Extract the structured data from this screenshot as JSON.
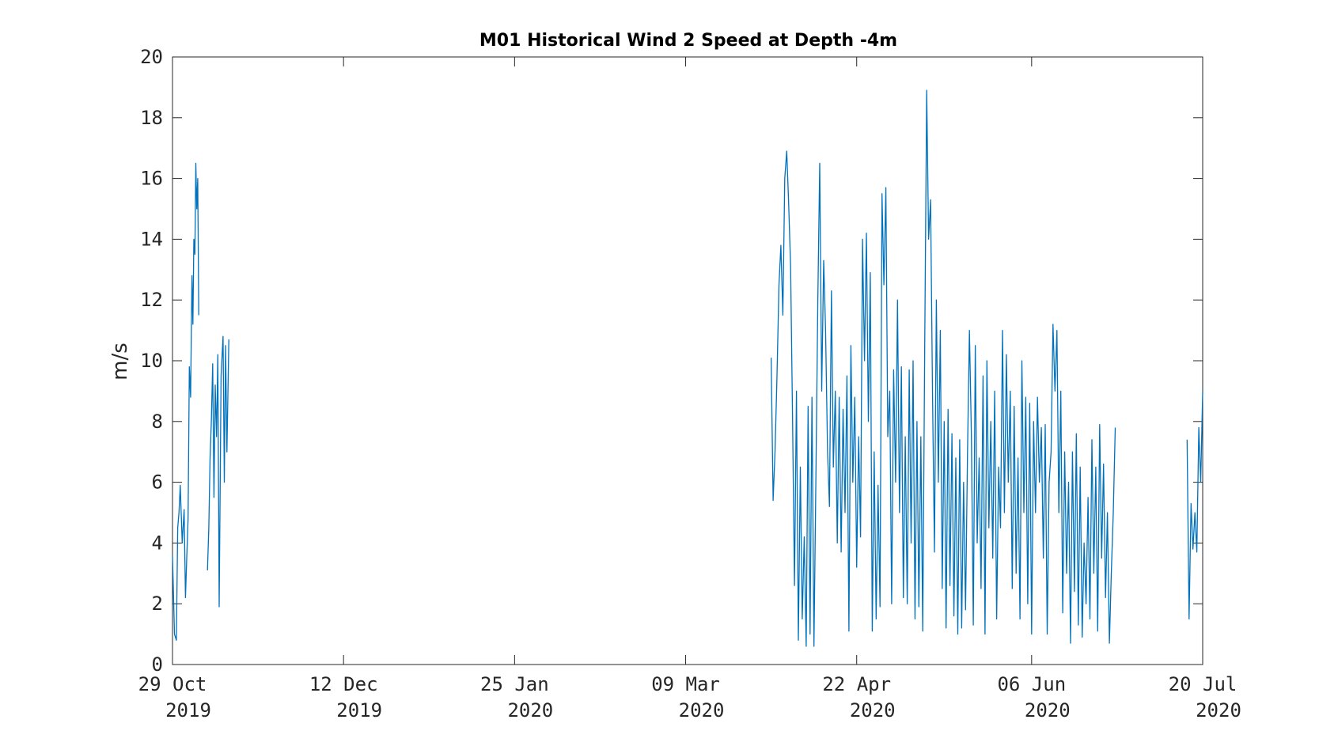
{
  "chart_data": {
    "type": "line",
    "title": "M01 Historical Wind 2 Speed at Depth -4m",
    "xlabel": "",
    "ylabel": "m/s",
    "x_axis_type": "date",
    "xlim": [
      "2019-10-29",
      "2020-07-20"
    ],
    "ylim": [
      0,
      20
    ],
    "yticks": [
      0,
      2,
      4,
      6,
      8,
      10,
      12,
      14,
      16,
      18,
      20
    ],
    "xticks": [
      {
        "date": "2019-10-29",
        "line1": "29 Oct",
        "line2": "2019"
      },
      {
        "date": "2019-12-12",
        "line1": "12 Dec",
        "line2": "2019"
      },
      {
        "date": "2020-01-25",
        "line1": "25 Jan",
        "line2": "2020"
      },
      {
        "date": "2020-03-09",
        "line1": "09 Mar",
        "line2": "2020"
      },
      {
        "date": "2020-04-22",
        "line1": "22 Apr",
        "line2": "2020"
      },
      {
        "date": "2020-06-06",
        "line1": "06 Jun",
        "line2": "2020"
      },
      {
        "date": "2020-07-20",
        "line1": "20 Jul",
        "line2": "2020"
      }
    ],
    "grid": false,
    "legend": "none",
    "line_color": "#0072BD",
    "series": [
      {
        "segments": [
          [
            [
              "2019-10-29",
              3.6
            ],
            [
              "2019-10-29",
              1.0
            ],
            [
              "2019-10-30",
              0.8
            ],
            [
              "2019-10-30",
              4.5
            ],
            [
              "2019-10-30",
              5.0
            ],
            [
              "2019-10-31",
              5.9
            ],
            [
              "2019-10-31",
              4.0
            ],
            [
              "2019-11-01",
              5.1
            ],
            [
              "2019-11-01",
              2.2
            ],
            [
              "2019-11-01",
              3.5
            ],
            [
              "2019-11-02",
              4.8
            ],
            [
              "2019-11-02",
              9.8
            ],
            [
              "2019-11-02",
              8.8
            ],
            [
              "2019-11-03",
              12.8
            ],
            [
              "2019-11-03",
              11.2
            ],
            [
              "2019-11-03",
              14.0
            ],
            [
              "2019-11-03",
              13.5
            ],
            [
              "2019-11-04",
              16.5
            ],
            [
              "2019-11-04",
              15.0
            ],
            [
              "2019-11-04",
              16.0
            ],
            [
              "2019-11-04",
              11.5
            ]
          ],
          [
            [
              "2019-11-07",
              3.1
            ],
            [
              "2019-11-07",
              4.5
            ],
            [
              "2019-11-07",
              6.8
            ],
            [
              "2019-11-08",
              8.0
            ],
            [
              "2019-11-08",
              9.9
            ],
            [
              "2019-11-08",
              5.5
            ],
            [
              "2019-11-09",
              9.2
            ],
            [
              "2019-11-09",
              7.5
            ],
            [
              "2019-11-09",
              10.2
            ],
            [
              "2019-11-10",
              1.9
            ],
            [
              "2019-11-10",
              9.5
            ],
            [
              "2019-11-11",
              10.8
            ],
            [
              "2019-11-11",
              6.0
            ],
            [
              "2019-11-11",
              10.5
            ],
            [
              "2019-11-12",
              7.0
            ],
            [
              "2019-11-12",
              10.7
            ]
          ],
          [
            [
              "2020-03-31",
              10.1
            ],
            [
              "2020-03-31",
              5.4
            ],
            [
              "2020-04-01",
              7.0
            ],
            [
              "2020-04-01",
              9.5
            ],
            [
              "2020-04-02",
              12.5
            ],
            [
              "2020-04-02",
              13.8
            ],
            [
              "2020-04-03",
              11.5
            ],
            [
              "2020-04-03",
              16.0
            ],
            [
              "2020-04-04",
              16.9
            ],
            [
              "2020-04-04",
              15.2
            ],
            [
              "2020-04-05",
              13.1
            ],
            [
              "2020-04-05",
              8.0
            ],
            [
              "2020-04-06",
              2.6
            ],
            [
              "2020-04-06",
              9.0
            ],
            [
              "2020-04-07",
              0.8
            ],
            [
              "2020-04-07",
              6.5
            ],
            [
              "2020-04-08",
              1.5
            ],
            [
              "2020-04-08",
              4.2
            ],
            [
              "2020-04-09",
              0.6
            ],
            [
              "2020-04-09",
              8.5
            ],
            [
              "2020-04-10",
              1.0
            ],
            [
              "2020-04-10",
              8.8
            ],
            [
              "2020-04-11",
              0.6
            ],
            [
              "2020-04-11",
              6.0
            ],
            [
              "2020-04-12",
              12.0
            ],
            [
              "2020-04-12",
              16.5
            ],
            [
              "2020-04-13",
              9.0
            ],
            [
              "2020-04-13",
              13.3
            ],
            [
              "2020-04-14",
              11.0
            ],
            [
              "2020-04-14",
              7.0
            ],
            [
              "2020-04-15",
              5.2
            ],
            [
              "2020-04-15",
              12.3
            ],
            [
              "2020-04-16",
              6.5
            ],
            [
              "2020-04-16",
              9.0
            ],
            [
              "2020-04-17",
              4.0
            ],
            [
              "2020-04-17",
              8.8
            ],
            [
              "2020-04-18",
              3.7
            ],
            [
              "2020-04-18",
              8.4
            ],
            [
              "2020-04-19",
              5.0
            ],
            [
              "2020-04-19",
              9.5
            ],
            [
              "2020-04-20",
              1.1
            ],
            [
              "2020-04-20",
              10.5
            ],
            [
              "2020-04-21",
              6.0
            ],
            [
              "2020-04-21",
              8.8
            ],
            [
              "2020-04-22",
              3.2
            ],
            [
              "2020-04-22",
              7.5
            ],
            [
              "2020-04-23",
              4.2
            ],
            [
              "2020-04-23",
              14.0
            ],
            [
              "2020-04-24",
              10.0
            ],
            [
              "2020-04-24",
              14.2
            ],
            [
              "2020-04-25",
              8.0
            ],
            [
              "2020-04-25",
              12.9
            ],
            [
              "2020-04-26",
              1.1
            ],
            [
              "2020-04-26",
              7.0
            ],
            [
              "2020-04-27",
              1.5
            ],
            [
              "2020-04-27",
              5.9
            ],
            [
              "2020-04-28",
              1.9
            ],
            [
              "2020-04-28",
              15.5
            ],
            [
              "2020-04-29",
              12.5
            ],
            [
              "2020-04-29",
              15.7
            ],
            [
              "2020-04-30",
              7.5
            ],
            [
              "2020-04-30",
              9.0
            ],
            [
              "2020-05-01",
              2.0
            ],
            [
              "2020-05-01",
              9.7
            ],
            [
              "2020-05-02",
              6.0
            ],
            [
              "2020-05-02",
              12.0
            ],
            [
              "2020-05-03",
              5.0
            ],
            [
              "2020-05-03",
              9.8
            ],
            [
              "2020-05-04",
              2.2
            ],
            [
              "2020-05-04",
              7.5
            ],
            [
              "2020-05-05",
              2.0
            ],
            [
              "2020-05-05",
              9.7
            ],
            [
              "2020-05-06",
              4.0
            ],
            [
              "2020-05-06",
              10.0
            ],
            [
              "2020-05-07",
              1.5
            ],
            [
              "2020-05-07",
              8.0
            ],
            [
              "2020-05-08",
              1.9
            ],
            [
              "2020-05-08",
              7.5
            ],
            [
              "2020-05-09",
              1.1
            ],
            [
              "2020-05-09",
              10.5
            ],
            [
              "2020-05-10",
              18.9
            ],
            [
              "2020-05-10",
              14.0
            ],
            [
              "2020-05-11",
              15.3
            ],
            [
              "2020-05-11",
              9.0
            ],
            [
              "2020-05-12",
              3.7
            ],
            [
              "2020-05-12",
              12.0
            ],
            [
              "2020-05-13",
              6.0
            ],
            [
              "2020-05-13",
              11.0
            ],
            [
              "2020-05-14",
              2.5
            ],
            [
              "2020-05-14",
              8.0
            ],
            [
              "2020-05-15",
              1.2
            ],
            [
              "2020-05-15",
              8.4
            ],
            [
              "2020-05-16",
              2.6
            ],
            [
              "2020-05-16",
              7.6
            ],
            [
              "2020-05-17",
              1.6
            ],
            [
              "2020-05-17",
              6.8
            ],
            [
              "2020-05-18",
              1.0
            ],
            [
              "2020-05-18",
              7.4
            ],
            [
              "2020-05-19",
              1.2
            ],
            [
              "2020-05-19",
              6.0
            ],
            [
              "2020-05-20",
              1.8
            ],
            [
              "2020-05-20",
              7.0
            ],
            [
              "2020-05-21",
              11.0
            ],
            [
              "2020-05-21",
              7.5
            ],
            [
              "2020-05-22",
              1.3
            ],
            [
              "2020-05-22",
              10.5
            ],
            [
              "2020-05-23",
              4.0
            ],
            [
              "2020-05-23",
              6.8
            ],
            [
              "2020-05-24",
              2.5
            ],
            [
              "2020-05-24",
              9.5
            ],
            [
              "2020-05-25",
              1.0
            ],
            [
              "2020-05-25",
              10.0
            ],
            [
              "2020-05-26",
              4.5
            ],
            [
              "2020-05-26",
              8.0
            ],
            [
              "2020-05-27",
              3.5
            ],
            [
              "2020-05-27",
              9.0
            ],
            [
              "2020-05-28",
              1.5
            ],
            [
              "2020-05-28",
              6.5
            ],
            [
              "2020-05-29",
              4.5
            ],
            [
              "2020-05-29",
              11.0
            ],
            [
              "2020-05-30",
              5.0
            ],
            [
              "2020-05-30",
              10.2
            ],
            [
              "2020-05-31",
              6.0
            ],
            [
              "2020-05-31",
              9.0
            ],
            [
              "2020-06-01",
              2.5
            ],
            [
              "2020-06-01",
              8.5
            ],
            [
              "2020-06-02",
              3.0
            ],
            [
              "2020-06-02",
              6.8
            ],
            [
              "2020-06-03",
              1.5
            ],
            [
              "2020-06-03",
              10.0
            ],
            [
              "2020-06-04",
              5.0
            ],
            [
              "2020-06-04",
              8.8
            ],
            [
              "2020-06-05",
              2.0
            ],
            [
              "2020-06-05",
              8.6
            ],
            [
              "2020-06-06",
              1.0
            ],
            [
              "2020-06-06",
              8.0
            ],
            [
              "2020-06-07",
              5.0
            ],
            [
              "2020-06-07",
              8.8
            ],
            [
              "2020-06-08",
              6.0
            ],
            [
              "2020-06-08",
              7.8
            ],
            [
              "2020-06-09",
              3.5
            ],
            [
              "2020-06-09",
              7.9
            ],
            [
              "2020-06-10",
              1.0
            ],
            [
              "2020-06-10",
              6.0
            ],
            [
              "2020-06-11",
              7.0
            ],
            [
              "2020-06-11",
              11.2
            ],
            [
              "2020-06-12",
              9.0
            ],
            [
              "2020-06-12",
              11.0
            ],
            [
              "2020-06-13",
              5.0
            ],
            [
              "2020-06-13",
              9.0
            ],
            [
              "2020-06-14",
              1.7
            ],
            [
              "2020-06-14",
              7.0
            ],
            [
              "2020-06-15",
              3.0
            ],
            [
              "2020-06-15",
              6.0
            ],
            [
              "2020-06-16",
              0.7
            ],
            [
              "2020-06-16",
              7.0
            ],
            [
              "2020-06-17",
              2.4
            ],
            [
              "2020-06-17",
              7.6
            ],
            [
              "2020-06-18",
              1.3
            ],
            [
              "2020-06-18",
              6.5
            ],
            [
              "2020-06-19",
              0.9
            ],
            [
              "2020-06-19",
              4.0
            ],
            [
              "2020-06-20",
              2.0
            ],
            [
              "2020-06-20",
              5.5
            ],
            [
              "2020-06-21",
              1.5
            ],
            [
              "2020-06-21",
              7.4
            ],
            [
              "2020-06-22",
              3.0
            ],
            [
              "2020-06-22",
              6.5
            ],
            [
              "2020-06-23",
              1.1
            ],
            [
              "2020-06-23",
              7.9
            ],
            [
              "2020-06-24",
              3.5
            ],
            [
              "2020-06-24",
              6.6
            ],
            [
              "2020-06-25",
              2.2
            ],
            [
              "2020-06-25",
              5.0
            ],
            [
              "2020-06-26",
              0.7
            ],
            [
              "2020-06-26",
              3.0
            ],
            [
              "2020-06-27",
              5.0
            ],
            [
              "2020-06-27",
              7.8
            ]
          ],
          [
            [
              "2020-07-16",
              7.4
            ],
            [
              "2020-07-16",
              1.5
            ],
            [
              "2020-07-17",
              5.3
            ],
            [
              "2020-07-17",
              3.8
            ],
            [
              "2020-07-18",
              5.0
            ],
            [
              "2020-07-18",
              3.7
            ],
            [
              "2020-07-19",
              7.8
            ],
            [
              "2020-07-19",
              6.0
            ],
            [
              "2020-07-20",
              9.0
            ]
          ]
        ]
      }
    ]
  }
}
